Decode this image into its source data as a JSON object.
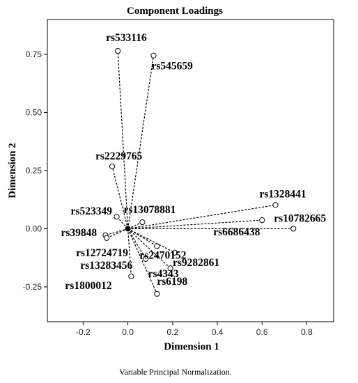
{
  "chart_data": {
    "type": "scatter",
    "title": "Component Loadings",
    "xlabel": "Dimension 1",
    "ylabel": "Dimension 2",
    "footnote": "Variable Principal Normalization.",
    "xlim": [
      -0.36,
      0.92
    ],
    "ylim": [
      -0.4,
      0.9
    ],
    "x_ticks": [
      -0.2,
      0.0,
      0.2,
      0.4,
      0.6,
      0.8
    ],
    "x_tick_labels": [
      "-0.2",
      "0.0",
      "0.2",
      "0.4",
      "0.6",
      "0.8"
    ],
    "y_ticks": [
      -0.25,
      0.0,
      0.25,
      0.5,
      0.75
    ],
    "y_tick_labels": [
      "-0.25",
      "0.00",
      "0.25",
      "0.50",
      "0.75"
    ],
    "grid": false,
    "vectors_from_origin": true,
    "points": [
      {
        "label": "rs533116",
        "x": -0.045,
        "y": 0.765
      },
      {
        "label": "rs545659",
        "x": 0.115,
        "y": 0.745
      },
      {
        "label": "rs2229765",
        "x": -0.07,
        "y": 0.268
      },
      {
        "label": "rs1328441",
        "x": 0.66,
        "y": 0.102
      },
      {
        "label": "rs10782665",
        "x": 0.74,
        "y": 0.0
      },
      {
        "label": "rs6686438",
        "x": 0.6,
        "y": 0.037
      },
      {
        "label": "rs523349",
        "x": -0.05,
        "y": 0.052
      },
      {
        "label": "rs13078881",
        "x": 0.065,
        "y": 0.028
      },
      {
        "label": "rs39848",
        "x": -0.1,
        "y": -0.028
      },
      {
        "label": "rs12724719",
        "x": -0.095,
        "y": -0.04
      },
      {
        "label": "rs2470152",
        "x": 0.13,
        "y": -0.075
      },
      {
        "label": "rs9282861",
        "x": 0.21,
        "y": -0.103
      },
      {
        "label": "rs13283456",
        "x": 0.08,
        "y": -0.13
      },
      {
        "label": "rs4343",
        "x": 0.19,
        "y": -0.17
      },
      {
        "label": "rs1800012",
        "x": 0.015,
        "y": -0.205
      },
      {
        "label": "rs6198",
        "x": 0.13,
        "y": -0.28
      }
    ]
  }
}
